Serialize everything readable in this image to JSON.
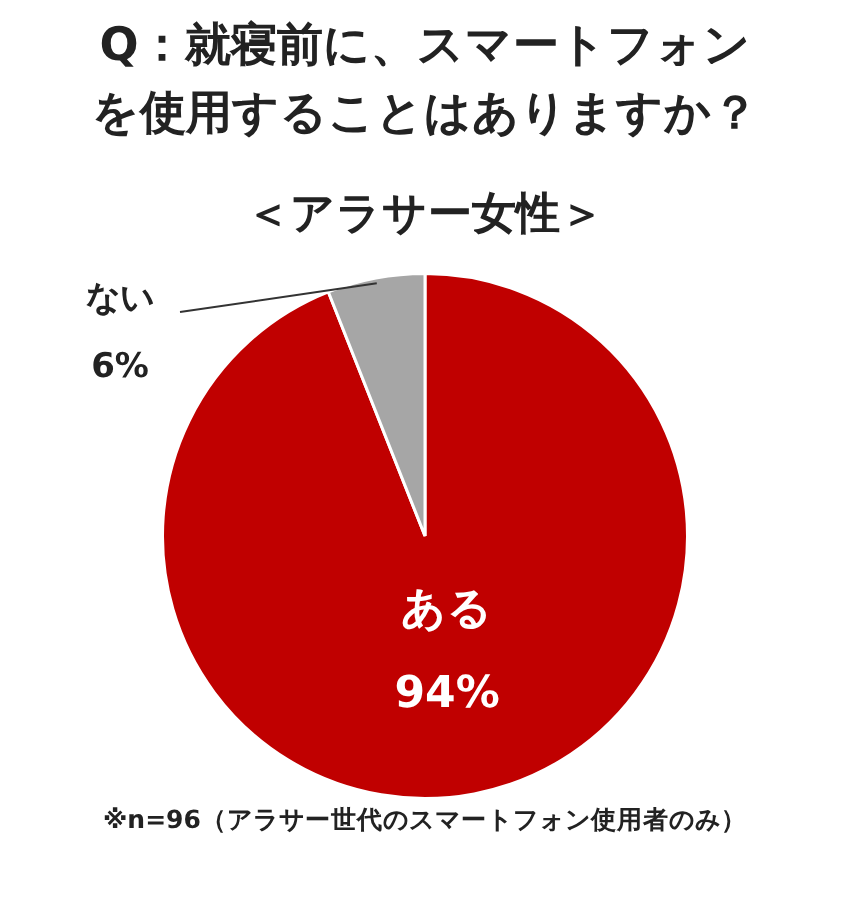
{
  "chart_data": {
    "type": "pie",
    "title": "Q：就寝前に、スマートフォンを使用することはありますか？",
    "subtitle": "＜アラサー女性＞",
    "categories": [
      "ある",
      "ない"
    ],
    "values": [
      94,
      6
    ],
    "colors": [
      "#c00000",
      "#a6a6a6"
    ],
    "value_labels": [
      "94%",
      "6%"
    ],
    "legend": false,
    "annotations": [
      "※n=96（アラサー世代のスマートフォン使用者のみ）"
    ]
  }
}
